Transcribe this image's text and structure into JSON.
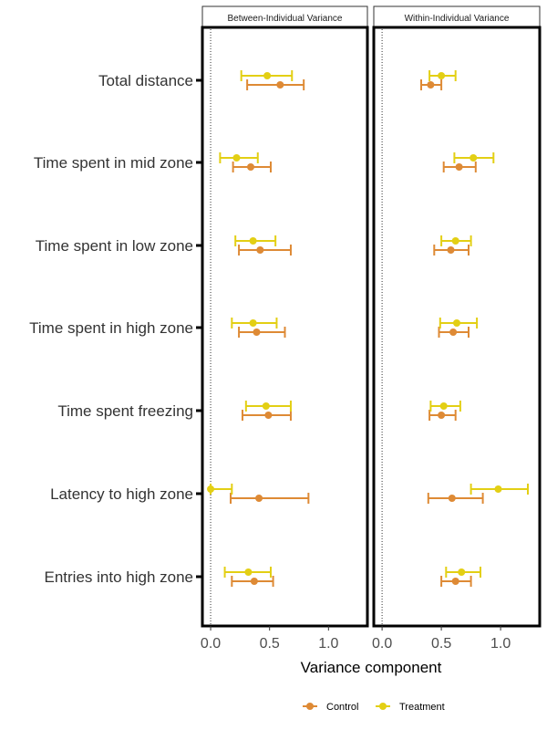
{
  "chart_data": {
    "type": "scatter",
    "subtype": "forest-plot",
    "xlabel": "Variance component",
    "xlim": [
      -0.07,
      1.33
    ],
    "xticks": [
      0.0,
      0.5,
      1.0
    ],
    "xtick_labels": [
      "0.0",
      "0.5",
      "1.0"
    ],
    "grid": false,
    "reference_line": {
      "x": 0,
      "style": "dotted"
    },
    "legend_position": "bottom",
    "categories": [
      "Total distance",
      "Time spent in mid zone",
      "Time spent in low zone",
      "Time spent in high zone",
      "Time spent freezing",
      "Latency to high zone",
      "Entries into high zone"
    ],
    "series_meta": [
      {
        "name": "Control",
        "color": "#DE8A35"
      },
      {
        "name": "Treatment",
        "color": "#E3CF14"
      }
    ],
    "facets": [
      {
        "title": "Between-Individual Variance",
        "series": [
          {
            "name": "Control",
            "estimate": [
              0.59,
              0.34,
              0.42,
              0.39,
              0.49,
              0.41,
              0.37
            ],
            "lower": [
              0.31,
              0.19,
              0.24,
              0.24,
              0.27,
              0.17,
              0.18
            ],
            "upper": [
              0.79,
              0.51,
              0.68,
              0.63,
              0.68,
              0.83,
              0.53
            ]
          },
          {
            "name": "Treatment",
            "estimate": [
              0.48,
              0.22,
              0.36,
              0.36,
              0.47,
              0.0,
              0.32
            ],
            "lower": [
              0.26,
              0.08,
              0.21,
              0.18,
              0.3,
              0.0,
              0.12
            ],
            "upper": [
              0.69,
              0.4,
              0.55,
              0.56,
              0.68,
              0.18,
              0.51
            ]
          }
        ]
      },
      {
        "title": "Within-Individual Variance",
        "series": [
          {
            "name": "Control",
            "estimate": [
              0.41,
              0.65,
              0.58,
              0.6,
              0.5,
              0.59,
              0.62
            ],
            "lower": [
              0.33,
              0.52,
              0.44,
              0.48,
              0.4,
              0.39,
              0.5
            ],
            "upper": [
              0.5,
              0.79,
              0.73,
              0.73,
              0.62,
              0.85,
              0.75
            ]
          },
          {
            "name": "Treatment",
            "estimate": [
              0.5,
              0.77,
              0.62,
              0.63,
              0.52,
              0.98,
              0.67
            ],
            "lower": [
              0.4,
              0.61,
              0.5,
              0.49,
              0.41,
              0.75,
              0.54
            ],
            "upper": [
              0.62,
              0.94,
              0.75,
              0.8,
              0.66,
              1.23,
              0.83
            ]
          }
        ]
      }
    ]
  }
}
